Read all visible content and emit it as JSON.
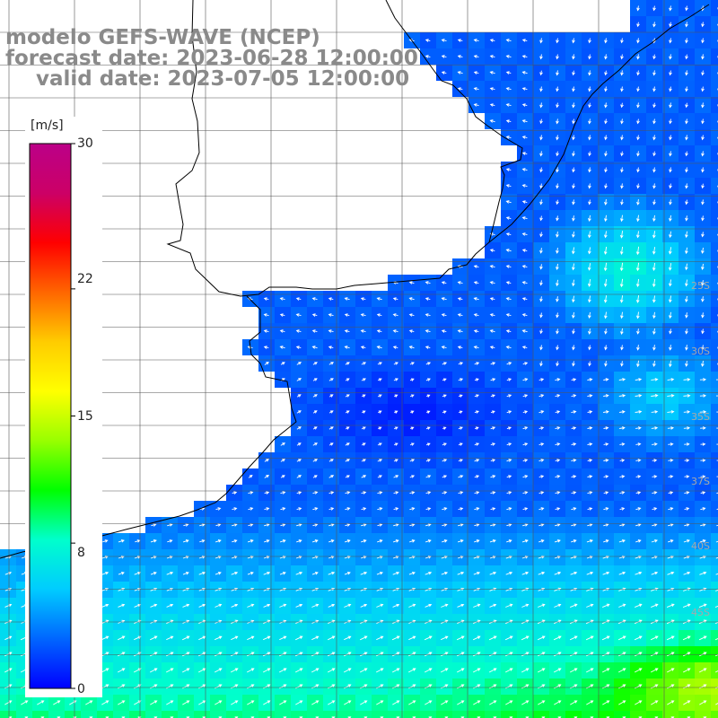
{
  "title": {
    "line1": "modelo GEFS-WAVE (NCEP)",
    "line2": "forecast date: 2023-06-28 12:00:00",
    "line3": "valid date: 2023-07-05 12:00:00"
  },
  "colorbar": {
    "unit": "[m/s]",
    "min": 0,
    "max": 30,
    "ticks": [
      "30",
      "22",
      "15",
      "8",
      "0"
    ],
    "colors": [
      "#0000ff",
      "#0066ff",
      "#00ccff",
      "#00ffcc",
      "#00ff00",
      "#99ff00",
      "#ffff00",
      "#ffcc00",
      "#ff6600",
      "#ff0000",
      "#cc0066",
      "#bb0088"
    ]
  },
  "map": {
    "land_color": "#ffffff",
    "coast_color": "#000000",
    "grid_color": "#555555",
    "arrow_color": "#ffffff",
    "latitude_labels": [
      "25S",
      "30S",
      "35S",
      "37S",
      "40S",
      "45S"
    ]
  }
}
